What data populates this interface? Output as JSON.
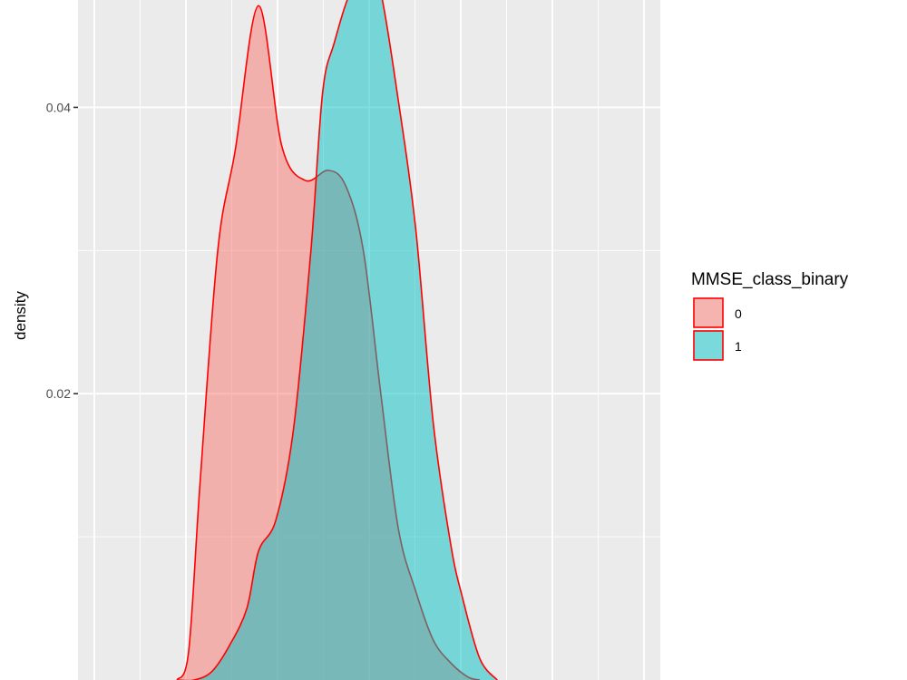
{
  "chart_data": {
    "type": "area",
    "title": "",
    "xlabel": "",
    "ylabel": "density",
    "ylim": [
      0.0,
      0.0475
    ],
    "xlim": [
      0,
      1
    ],
    "y_ticks": [
      0.02,
      0.04
    ],
    "y_tick_labels": [
      "0.02",
      "0.04"
    ],
    "grid": true,
    "legend": {
      "title": "MMSE_class_binary",
      "position": "right",
      "entries": [
        {
          "label": "0",
          "fill": "#F8766D"
        },
        {
          "label": "1",
          "fill": "#00BFC4"
        }
      ]
    },
    "outline_color": "#FF0000",
    "series": [
      {
        "name": "0",
        "fill": "#F8766D",
        "x": [
          0.17,
          0.19,
          0.21,
          0.24,
          0.27,
          0.31,
          0.35,
          0.39,
          0.43,
          0.46,
          0.49,
          0.52,
          0.55,
          0.58,
          0.61,
          0.64,
          0.67,
          0.69
        ],
        "y": [
          0.0,
          0.002,
          0.014,
          0.03,
          0.037,
          0.0471,
          0.0373,
          0.0349,
          0.0356,
          0.0345,
          0.03,
          0.02,
          0.0106,
          0.0062,
          0.0028,
          0.0012,
          0.0002,
          0.0
        ]
      },
      {
        "name": "1",
        "fill": "#00BFC4",
        "x": [
          0.17,
          0.2,
          0.23,
          0.26,
          0.29,
          0.31,
          0.34,
          0.37,
          0.4,
          0.42,
          0.44,
          0.47,
          0.5,
          0.52,
          0.55,
          0.58,
          0.61,
          0.64,
          0.66,
          0.69,
          0.72
        ],
        "y": [
          0.0,
          0.0,
          0.0006,
          0.0024,
          0.005,
          0.009,
          0.0112,
          0.0175,
          0.03,
          0.041,
          0.0445,
          0.0482,
          0.0488,
          0.048,
          0.0405,
          0.0315,
          0.018,
          0.0095,
          0.0058,
          0.0015,
          0.0
        ]
      }
    ]
  }
}
